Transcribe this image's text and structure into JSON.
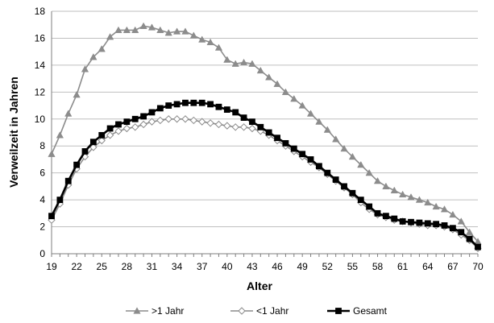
{
  "chart_data": {
    "type": "line",
    "xlabel": "Alter",
    "ylabel": "Verweilzeit in Jahren",
    "x_start": 19,
    "x_end": 70,
    "x_tick_labels": [
      "19",
      "22",
      "25",
      "28",
      "31",
      "34",
      "37",
      "40",
      "43",
      "46",
      "49",
      "52",
      "55",
      "58",
      "61",
      "64",
      "67",
      "70"
    ],
    "y_tick_labels": [
      "0",
      "2",
      "4",
      "6",
      "8",
      "10",
      "12",
      "14",
      "16",
      "18"
    ],
    "ylim": [
      0,
      18
    ],
    "grid": "horizontal",
    "legend_position": "bottom",
    "series": [
      {
        "name": ">1 Jahr",
        "color": "#8c8c8c",
        "marker": "triangle",
        "values": [
          7.4,
          8.8,
          10.4,
          11.8,
          13.7,
          14.6,
          15.2,
          16.1,
          16.6,
          16.6,
          16.6,
          16.9,
          16.8,
          16.6,
          16.4,
          16.5,
          16.5,
          16.2,
          15.9,
          15.7,
          15.3,
          14.4,
          14.1,
          14.2,
          14.1,
          13.6,
          13.1,
          12.6,
          12.0,
          11.5,
          11.0,
          10.4,
          9.8,
          9.2,
          8.5,
          7.8,
          7.2,
          6.6,
          6.0,
          5.4,
          5.0,
          4.7,
          4.4,
          4.2,
          4.0,
          3.8,
          3.5,
          3.3,
          2.9,
          2.4,
          1.6,
          0.9
        ]
      },
      {
        "name": "<1 Jahr",
        "color": "#8c8c8c",
        "marker": "diamond",
        "values": [
          2.5,
          3.7,
          5.1,
          6.3,
          7.2,
          7.9,
          8.4,
          8.8,
          9.1,
          9.3,
          9.4,
          9.6,
          9.8,
          9.9,
          10.0,
          10.0,
          10.0,
          9.9,
          9.8,
          9.7,
          9.6,
          9.5,
          9.4,
          9.4,
          9.3,
          9.1,
          8.8,
          8.4,
          8.0,
          7.6,
          7.2,
          6.8,
          6.4,
          5.9,
          5.4,
          4.9,
          4.4,
          3.8,
          3.3,
          2.9,
          2.7,
          2.5,
          2.4,
          2.3,
          2.2,
          2.1,
          2.1,
          2.0,
          1.8,
          1.4,
          1.0,
          0.4
        ]
      },
      {
        "name": "Gesamt",
        "color": "#000000",
        "marker": "square",
        "values": [
          2.8,
          4.0,
          5.4,
          6.6,
          7.6,
          8.3,
          8.8,
          9.3,
          9.6,
          9.8,
          10.0,
          10.2,
          10.5,
          10.8,
          11.0,
          11.1,
          11.2,
          11.2,
          11.2,
          11.1,
          10.9,
          10.7,
          10.5,
          10.1,
          9.8,
          9.4,
          9.0,
          8.6,
          8.2,
          7.8,
          7.4,
          7.0,
          6.5,
          6.0,
          5.5,
          5.0,
          4.5,
          4.0,
          3.5,
          3.0,
          2.8,
          2.6,
          2.4,
          2.35,
          2.3,
          2.25,
          2.2,
          2.1,
          1.9,
          1.6,
          1.1,
          0.5
        ]
      }
    ]
  }
}
